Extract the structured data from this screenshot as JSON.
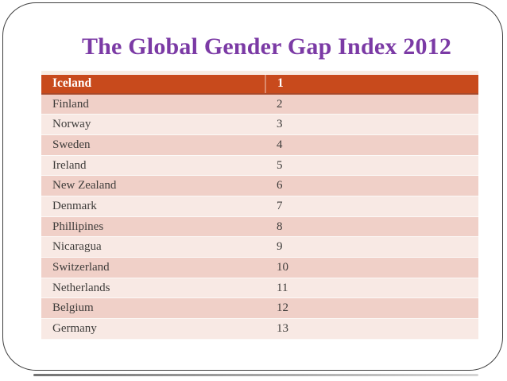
{
  "slide": {
    "title": "The Global Gender Gap Index 2012"
  },
  "table": {
    "rows": [
      {
        "country": "Iceland",
        "rank": "1"
      },
      {
        "country": "Finland",
        "rank": "2"
      },
      {
        "country": "Norway",
        "rank": "3"
      },
      {
        "country": "Sweden",
        "rank": "4"
      },
      {
        "country": "Ireland",
        "rank": "5"
      },
      {
        "country": "New Zealand",
        "rank": "6"
      },
      {
        "country": "Denmark",
        "rank": "7"
      },
      {
        "country": "Phillipines",
        "rank": "8"
      },
      {
        "country": "Nicaragua",
        "rank": "9"
      },
      {
        "country": "Switzerland",
        "rank": "10"
      },
      {
        "country": "Netherlands",
        "rank": "11"
      },
      {
        "country": "Belgium",
        "rank": "12"
      },
      {
        "country": "Germany",
        "rank": "13"
      }
    ]
  },
  "chart_data": {
    "type": "table",
    "title": "The Global Gender Gap Index 2012",
    "rows": [
      [
        "Iceland",
        1
      ],
      [
        "Finland",
        2
      ],
      [
        "Norway",
        3
      ],
      [
        "Sweden",
        4
      ],
      [
        "Ireland",
        5
      ],
      [
        "New Zealand",
        6
      ],
      [
        "Denmark",
        7
      ],
      [
        "Phillipines",
        8
      ],
      [
        "Nicaragua",
        9
      ],
      [
        "Switzerland",
        10
      ],
      [
        "Netherlands",
        11
      ],
      [
        "Belgium",
        12
      ],
      [
        "Germany",
        13
      ]
    ]
  },
  "colors": {
    "title_text": "#7B3AA5",
    "header_row_bg": "#C84A1C",
    "header_row_text": "#FFFFFF",
    "band_dark": "#F0D0C8",
    "band_light": "#F8E9E4",
    "body_text": "#3E3C3A",
    "frame_border": "#3F3F3F"
  }
}
